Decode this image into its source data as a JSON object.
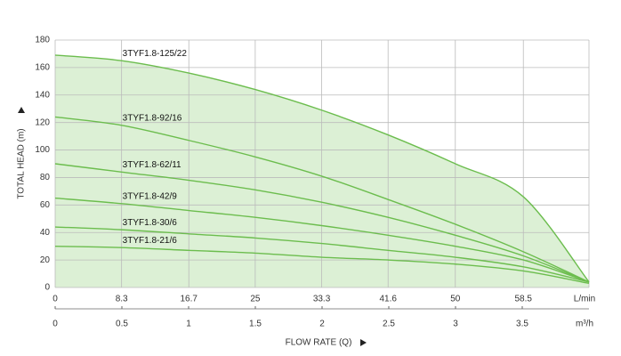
{
  "chart_data": {
    "type": "line",
    "y_label": "TOTAL HEAD (m)",
    "x_label": "FLOW RATE (Q)",
    "x_unit": "L/min",
    "x2_unit": "m³/h",
    "x": [
      0,
      8.3,
      16.7,
      25,
      33.3,
      41.6,
      50,
      58.5,
      66.7
    ],
    "xlim": [
      0,
      66.7
    ],
    "xticks": [
      0,
      8.3,
      16.7,
      25,
      33.3,
      41.6,
      50,
      58.5
    ],
    "x2lim": [
      0,
      4
    ],
    "x2ticks": [
      0,
      0.5,
      1,
      1.5,
      2,
      2.5,
      3,
      3.5
    ],
    "ylim": [
      0,
      180
    ],
    "yticks": [
      0,
      20,
      40,
      60,
      80,
      100,
      120,
      140,
      160,
      180
    ],
    "grid": true,
    "fill_color": "#dcf0d5",
    "series": [
      {
        "name": "3TYF1.8-125/22",
        "color": "#6cbd4e",
        "values": [
          169,
          165,
          156,
          144,
          129,
          111,
          90,
          66,
          4
        ]
      },
      {
        "name": "3TYF1.8-92/16",
        "color": "#6cbd4e",
        "values": [
          124,
          118,
          107,
          95,
          81,
          64,
          46,
          26,
          4
        ]
      },
      {
        "name": "3TYF1.8-62/11",
        "color": "#6cbd4e",
        "values": [
          90,
          84,
          78,
          71,
          62,
          51,
          38,
          23,
          4
        ]
      },
      {
        "name": "3TYF1.8-42/9",
        "color": "#6cbd4e",
        "values": [
          65,
          61,
          56,
          51,
          45,
          38,
          30,
          20,
          4
        ]
      },
      {
        "name": "3TYF1.8-30/6",
        "color": "#6cbd4e",
        "values": [
          44,
          42,
          39,
          36,
          32,
          27,
          22,
          15,
          4
        ]
      },
      {
        "name": "3TYF1.8-21/6",
        "color": "#6cbd4e",
        "values": [
          30,
          29,
          27,
          25,
          22,
          20,
          17,
          12,
          3
        ]
      }
    ]
  }
}
